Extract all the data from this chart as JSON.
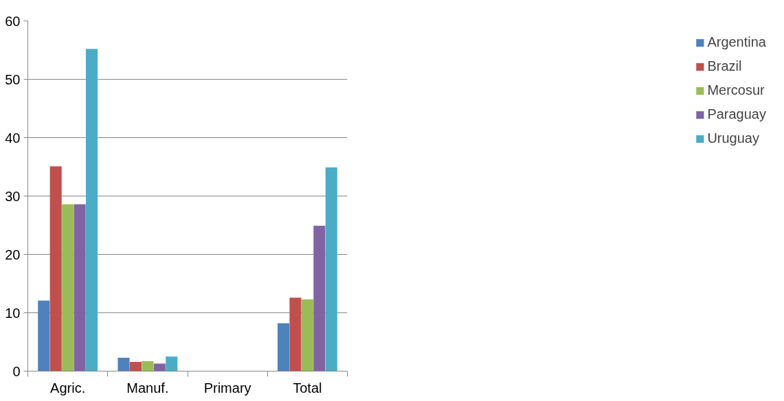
{
  "chart_data": {
    "type": "bar",
    "categories": [
      "Agric.",
      "Manuf.",
      "Primary",
      "Total"
    ],
    "series": [
      {
        "name": "Argentina",
        "color": "#4f81bd",
        "values": [
          12.1,
          2.3,
          0,
          8.2
        ]
      },
      {
        "name": "Brazil",
        "color": "#c0504d",
        "values": [
          35.1,
          1.6,
          0,
          12.6
        ]
      },
      {
        "name": "Mercosur",
        "color": "#9bbb59",
        "values": [
          28.6,
          1.7,
          0,
          12.3
        ]
      },
      {
        "name": "Paraguay",
        "color": "#8064a2",
        "values": [
          28.6,
          1.3,
          0,
          24.9
        ]
      },
      {
        "name": "Uruguay",
        "color": "#4bacc6",
        "values": [
          55.2,
          2.5,
          0,
          34.9
        ]
      }
    ],
    "ylim": [
      0,
      60
    ],
    "yticks": [
      0,
      10,
      20,
      30,
      40,
      50,
      60
    ],
    "grid": "y",
    "legend": "right"
  }
}
